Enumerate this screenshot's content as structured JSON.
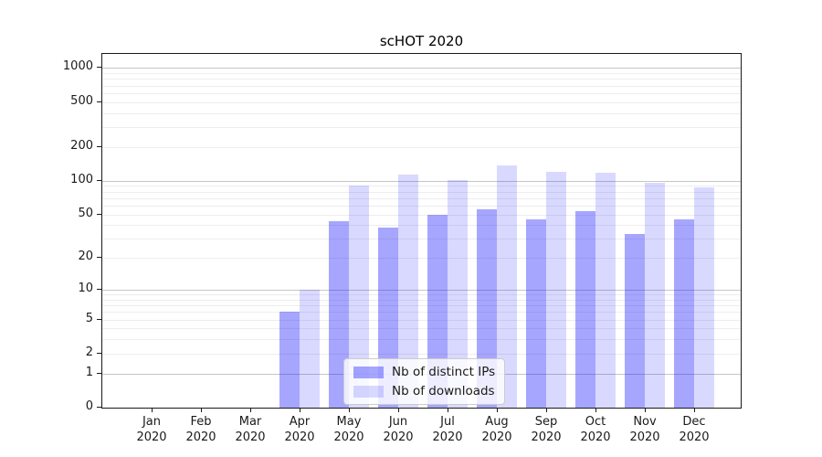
{
  "chart_data": {
    "type": "bar",
    "title": "scHOT 2020",
    "x_categories": [
      "Jan 2020",
      "Feb 2020",
      "Mar 2020",
      "Apr 2020",
      "May 2020",
      "Jun 2020",
      "Jul 2020",
      "Aug 2020",
      "Sep 2020",
      "Oct 2020",
      "Nov 2020",
      "Dec 2020"
    ],
    "series": [
      {
        "name": "Nb of distinct IPs",
        "color": "#0000ff59",
        "values": [
          0,
          0,
          0,
          6,
          43,
          38,
          50,
          55,
          45,
          53,
          33,
          45
        ]
      },
      {
        "name": "Nb of downloads",
        "color": "#0000ff26",
        "values": [
          0,
          0,
          0,
          10,
          90,
          113,
          101,
          137,
          120,
          118,
          96,
          87
        ]
      }
    ],
    "y_scale": "log1p",
    "ylim": [
      0,
      1100
    ],
    "y_tick_values": [
      0,
      1,
      2,
      5,
      10,
      20,
      50,
      100,
      200,
      500,
      1000
    ],
    "y_major_grid": [
      1,
      10,
      100,
      1000
    ],
    "y_minor_grid": [
      2,
      3,
      4,
      5,
      6,
      7,
      8,
      9,
      20,
      30,
      40,
      50,
      60,
      70,
      80,
      90,
      200,
      300,
      400,
      500,
      600,
      700,
      800,
      900
    ],
    "legend": {
      "position": "lower center",
      "items": [
        {
          "label": "Nb of distinct IPs"
        },
        {
          "label": "Nb of downloads"
        }
      ]
    },
    "grid_minor_color": "#ededed",
    "grid_major_color": "#c6c6c6",
    "axis_color": "#1a1a1a",
    "text_color": "#1a1a1a",
    "background_color": "#ffffff"
  }
}
